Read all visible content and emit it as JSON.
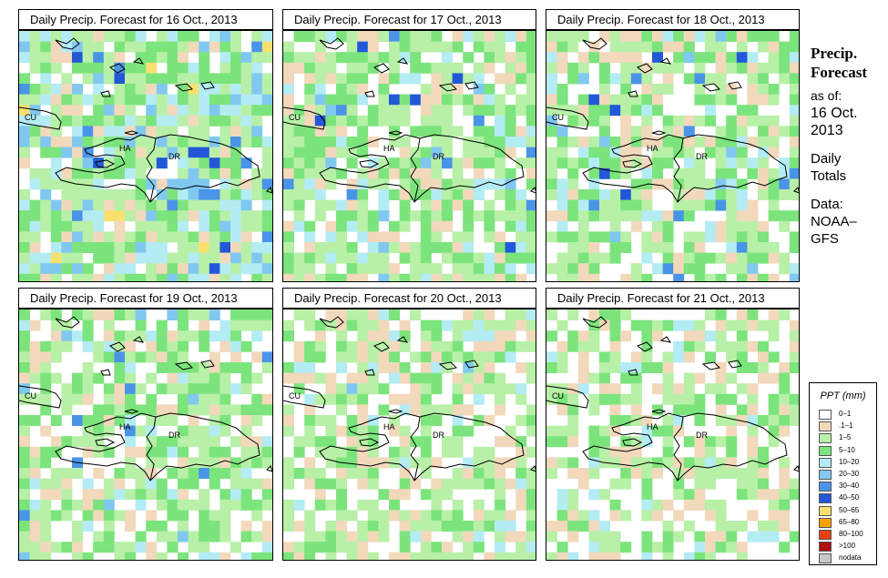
{
  "panels": [
    {
      "title": "Daily Precip. Forecast for  16 Oct., 2013"
    },
    {
      "title": "Daily Precip. Forecast for  17 Oct., 2013"
    },
    {
      "title": "Daily Precip. Forecast for  18 Oct., 2013"
    },
    {
      "title": "Daily Precip. Forecast for  19 Oct., 2013"
    },
    {
      "title": "Daily Precip. Forecast for  20 Oct., 2013"
    },
    {
      "title": "Daily Precip. Forecast for  21 Oct., 2013"
    }
  ],
  "map_labels": {
    "cu": "CU",
    "ha": "HA",
    "dr": "DR"
  },
  "side_panel": {
    "title_line1": "Precip.",
    "title_line2": "Forecast",
    "asof_line1": "as of:",
    "asof_line2": "16 Oct.",
    "asof_line3": "2013",
    "totals_line1": "Daily",
    "totals_line2": "Totals",
    "data_line1": "Data:",
    "data_line2": "NOAA–",
    "data_line3": "GFS"
  },
  "legend": {
    "title": "PPT (mm)",
    "items": [
      {
        "label": "0–1",
        "color": "#ffffff"
      },
      {
        "label": ".1–1",
        "color": "#f2d9bc"
      },
      {
        "label": "1–5",
        "color": "#b8f0a8"
      },
      {
        "label": "5–10",
        "color": "#7ce47c"
      },
      {
        "label": "10–20",
        "color": "#b4ecf4"
      },
      {
        "label": "20–30",
        "color": "#80c8f0"
      },
      {
        "label": "30–40",
        "color": "#4a94e8"
      },
      {
        "label": "40–50",
        "color": "#2258d8"
      },
      {
        "label": "50–65",
        "color": "#f8e070"
      },
      {
        "label": "65–80",
        "color": "#f8a000"
      },
      {
        "label": "80–100",
        "color": "#e84010"
      },
      {
        "label": ">100",
        "color": "#b01010"
      },
      {
        "label": "nodata",
        "color": "#c8c8c8"
      }
    ]
  }
}
